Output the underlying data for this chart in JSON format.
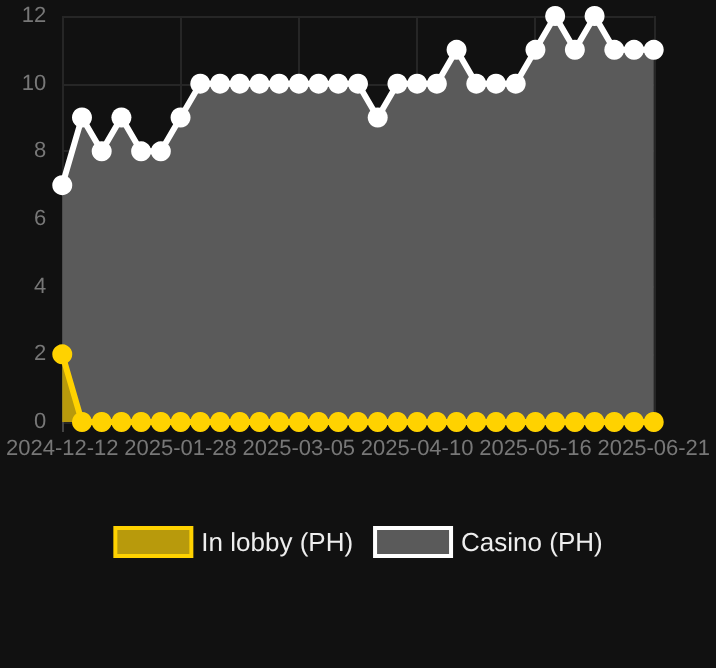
{
  "chart_data": {
    "type": "area",
    "categories": [
      "2024-12-12",
      null,
      null,
      null,
      null,
      null,
      "2025-01-28",
      null,
      null,
      null,
      null,
      null,
      "2025-03-05",
      null,
      null,
      null,
      null,
      null,
      "2025-04-10",
      null,
      null,
      null,
      null,
      null,
      "2025-05-16",
      null,
      null,
      null,
      null,
      null,
      "2025-06-21"
    ],
    "series": [
      {
        "name": "In lobby (PH)",
        "color": "#ffd200",
        "values": [
          2,
          0,
          0,
          0,
          0,
          0,
          0,
          0,
          0,
          0,
          0,
          0,
          0,
          0,
          0,
          0,
          0,
          0,
          0,
          0,
          0,
          0,
          0,
          0,
          0,
          0,
          0,
          0,
          0,
          0,
          0
        ]
      },
      {
        "name": "Casino (PH)",
        "color": "#ffffff",
        "values": [
          7,
          9,
          8,
          9,
          8,
          8,
          9,
          10,
          10,
          10,
          10,
          10,
          10,
          10,
          10,
          10,
          9,
          10,
          10,
          10,
          11,
          10,
          10,
          10,
          11,
          12,
          11,
          12,
          11,
          11,
          11
        ]
      }
    ],
    "ylim": [
      0,
      12
    ],
    "yticks": [
      0,
      2,
      4,
      6,
      8,
      10,
      12
    ],
    "grid": true,
    "legend": "bottom",
    "marker": "circle",
    "line_style": "solid"
  }
}
